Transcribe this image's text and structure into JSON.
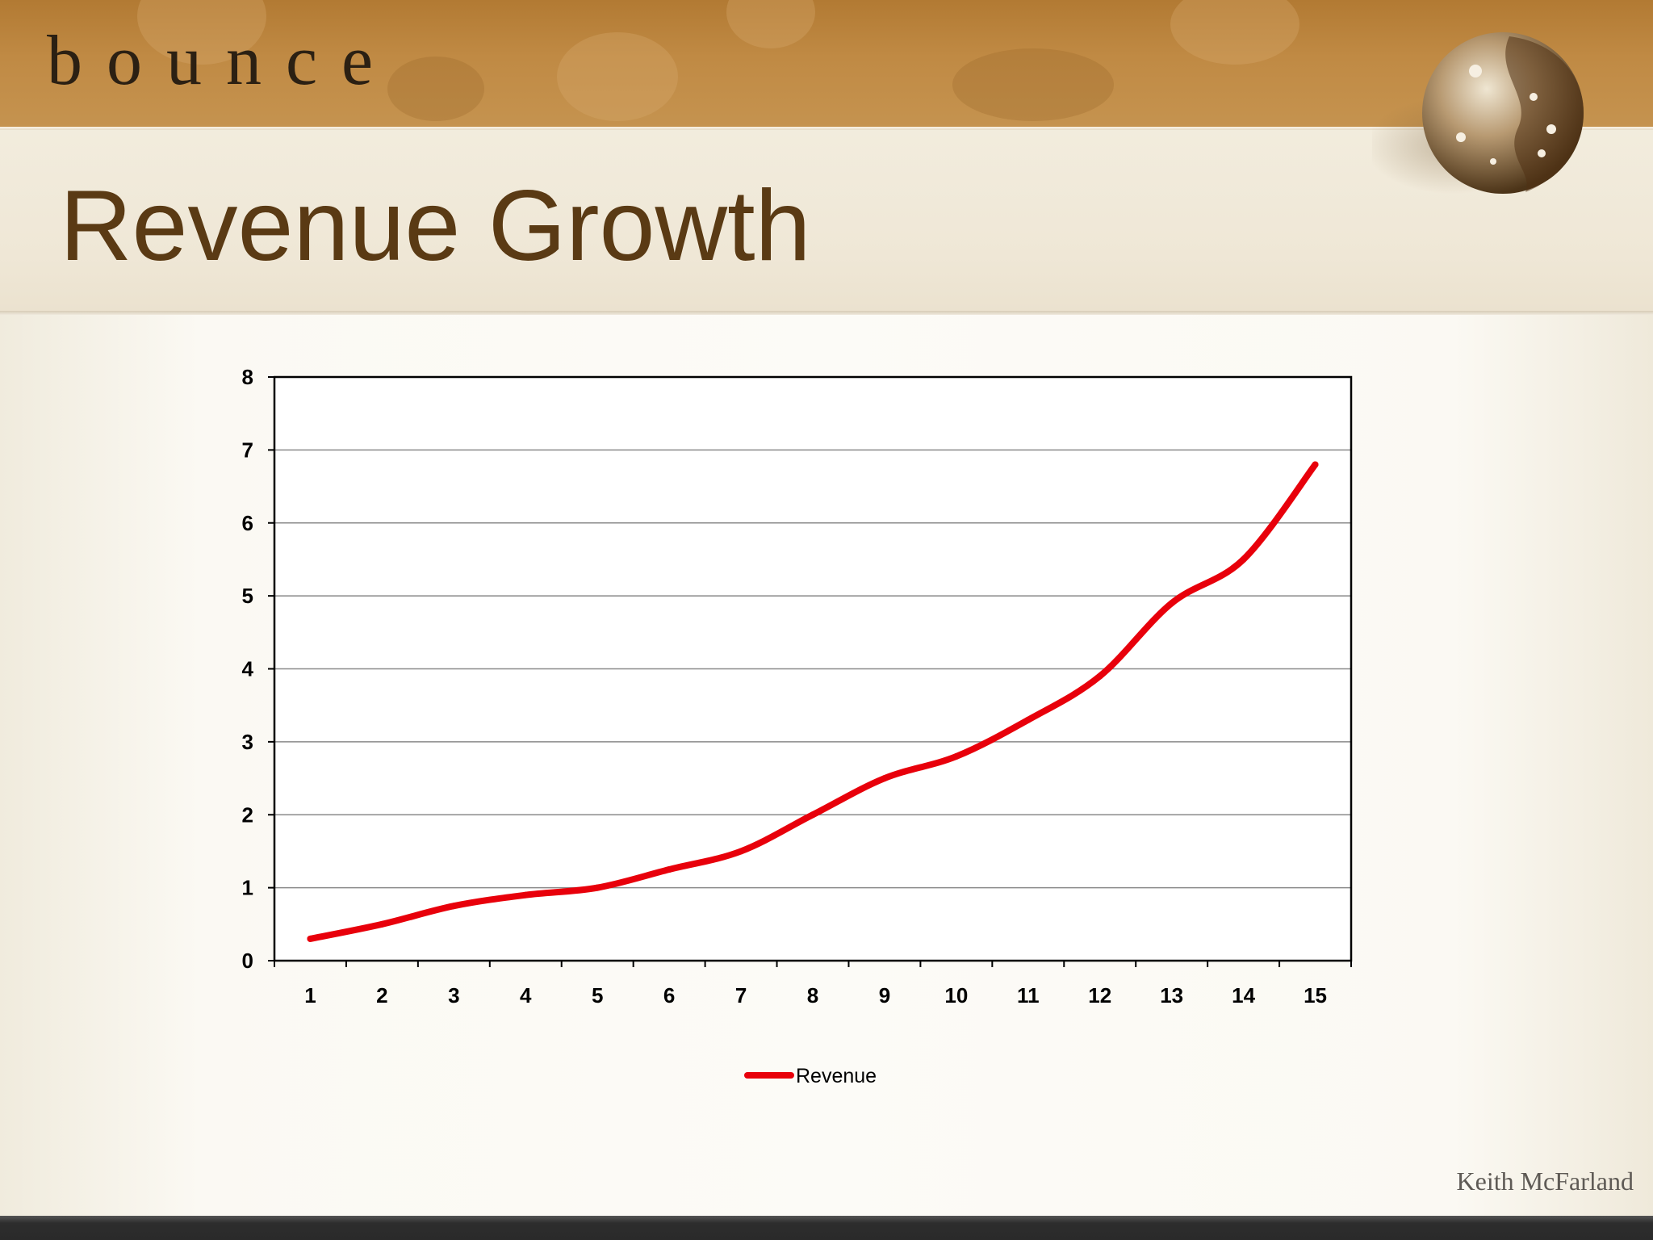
{
  "brand": {
    "logo_text": "bounce"
  },
  "slide": {
    "title": "Revenue Growth",
    "author": "Keith McFarland"
  },
  "colors": {
    "header": "#c08a44",
    "title": "#5a3a14",
    "line": "#e8000b"
  },
  "chart_data": {
    "type": "line",
    "title": "",
    "xlabel": "",
    "ylabel": "",
    "x": [
      1,
      2,
      3,
      4,
      5,
      6,
      7,
      8,
      9,
      10,
      11,
      12,
      13,
      14,
      15
    ],
    "y_ticks": [
      0,
      1,
      2,
      3,
      4,
      5,
      6,
      7,
      8
    ],
    "ylim": [
      0,
      8
    ],
    "grid": true,
    "legend": "bottom",
    "series": [
      {
        "name": "Revenue",
        "color": "#e8000b",
        "values": [
          0.3,
          0.5,
          0.75,
          0.9,
          1.0,
          1.25,
          1.5,
          2.0,
          2.5,
          2.8,
          3.3,
          3.9,
          4.9,
          5.5,
          6.8
        ]
      }
    ]
  }
}
